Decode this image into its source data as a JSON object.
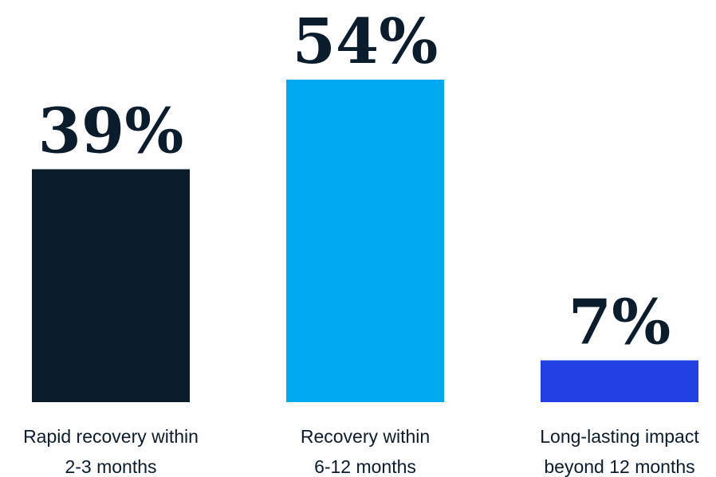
{
  "chart_data": {
    "type": "bar",
    "categories": [
      [
        "Rapid recovery within",
        "2-3 months"
      ],
      [
        "Recovery within",
        "6-12 months"
      ],
      [
        "Long-lasting impact",
        "beyond 12 months"
      ]
    ],
    "values": [
      39,
      54,
      7
    ],
    "value_labels": [
      "39%",
      "54%",
      "7%"
    ],
    "colors": [
      "#0a1c2b",
      "#00a8f0",
      "#2141e4"
    ],
    "title": "",
    "xlabel": "",
    "ylabel": "",
    "ylim": [
      0,
      54
    ],
    "grid": false,
    "legend": "none"
  }
}
